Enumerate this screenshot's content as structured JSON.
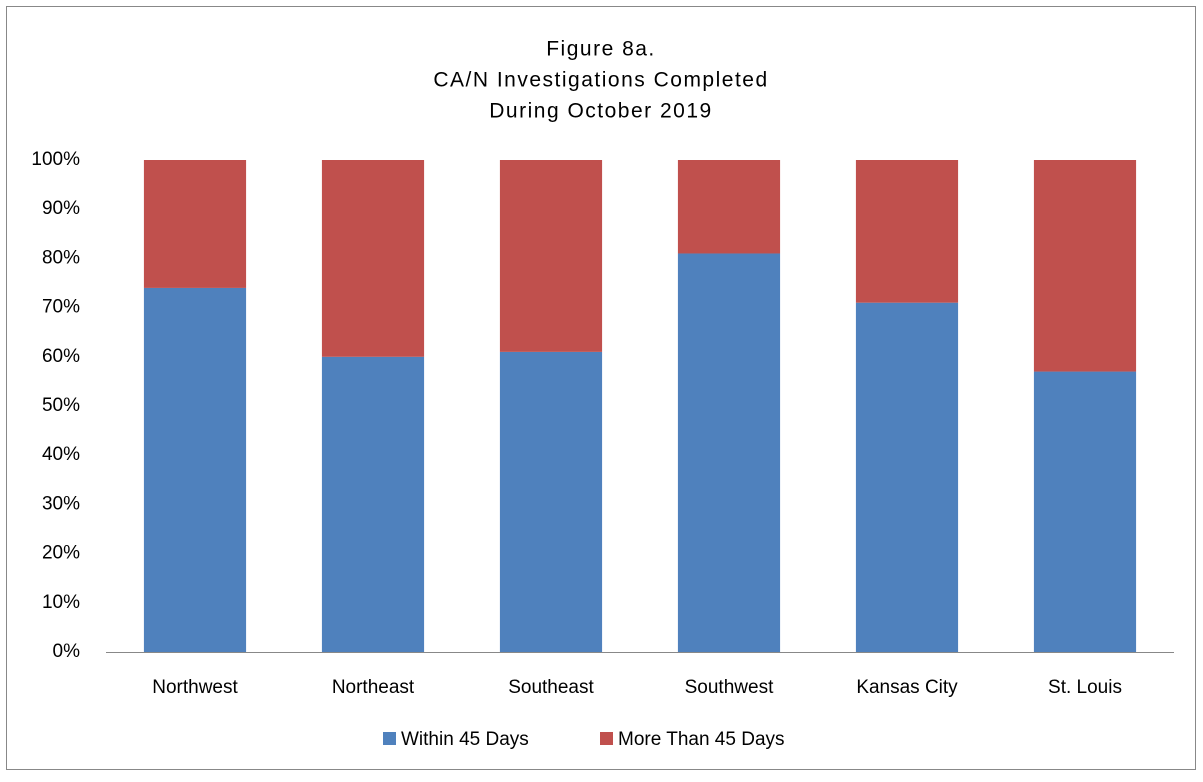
{
  "chart_data": {
    "type": "stacked_bar",
    "title": [
      "Figure 8a.",
      "CA/N Investigations Completed",
      "During October 2019"
    ],
    "categories": [
      "Northwest",
      "Northeast",
      "Southeast",
      "Southwest",
      "Kansas City",
      "St. Louis"
    ],
    "series": [
      {
        "name": "Within 45 Days",
        "color": "#4f81bd",
        "values": [
          74,
          60,
          61,
          81,
          71,
          57
        ]
      },
      {
        "name": "More Than 45 Days",
        "color": "#c0504d",
        "values": [
          26,
          40,
          39,
          19,
          29,
          43
        ]
      }
    ],
    "ylim": [
      0,
      100
    ],
    "yticks": [
      {
        "value": 0,
        "label": "0%"
      },
      {
        "value": 10,
        "label": "10%"
      },
      {
        "value": 20,
        "label": "20%"
      },
      {
        "value": 30,
        "label": "30%"
      },
      {
        "value": 40,
        "label": "40%"
      },
      {
        "value": 50,
        "label": "50%"
      },
      {
        "value": 60,
        "label": "60%"
      },
      {
        "value": 70,
        "label": "70%"
      },
      {
        "value": 80,
        "label": "80%"
      },
      {
        "value": 90,
        "label": "90%"
      },
      {
        "value": 100,
        "label": "100%"
      }
    ],
    "grid": false,
    "legend": "bottom"
  }
}
